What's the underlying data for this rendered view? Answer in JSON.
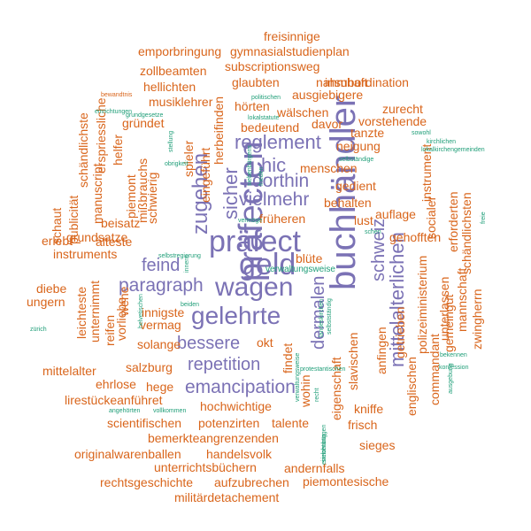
{
  "colors": {
    "large": "#7b72b5",
    "medium": "#d9651b",
    "small": "#1f9e78"
  },
  "words": [
    {
      "text": "buchhändler",
      "group": "large"
    },
    {
      "text": "präfecten",
      "group": "large"
    },
    {
      "text": "präfect",
      "group": "large"
    },
    {
      "text": "geld",
      "group": "large"
    },
    {
      "text": "wagen",
      "group": "large"
    },
    {
      "text": "gelehrte",
      "group": "large"
    },
    {
      "text": "paragraph",
      "group": "large"
    },
    {
      "text": "reglement",
      "group": "large"
    },
    {
      "text": "vielmehr",
      "group": "large"
    },
    {
      "text": "dorthin",
      "group": "large"
    },
    {
      "text": "hic",
      "group": "large"
    },
    {
      "text": "feind",
      "group": "large"
    },
    {
      "text": "bessere",
      "group": "large"
    },
    {
      "text": "repetition",
      "group": "large"
    },
    {
      "text": "emancipation",
      "group": "large"
    },
    {
      "text": "zugehen",
      "group": "large"
    },
    {
      "text": "sicher",
      "group": "large"
    },
    {
      "text": "dermalen",
      "group": "large"
    },
    {
      "text": "schweiz",
      "group": "large"
    },
    {
      "text": "mittelalterlichen",
      "group": "large"
    },
    {
      "text": "freisinnige",
      "group": "medium"
    },
    {
      "text": "gymnasialstudienplan",
      "group": "medium"
    },
    {
      "text": "emporbringung",
      "group": "medium"
    },
    {
      "text": "subscriptionsweg",
      "group": "medium"
    },
    {
      "text": "zollbeamten",
      "group": "medium"
    },
    {
      "text": "glaubten",
      "group": "medium"
    },
    {
      "text": "nahmhaft",
      "group": "medium"
    },
    {
      "text": "insubordination",
      "group": "medium"
    },
    {
      "text": "hellichten",
      "group": "medium"
    },
    {
      "text": "ausgiebigere",
      "group": "medium"
    },
    {
      "text": "musiklehrer",
      "group": "medium"
    },
    {
      "text": "hörten",
      "group": "medium"
    },
    {
      "text": "zurecht",
      "group": "medium"
    },
    {
      "text": "wälschen",
      "group": "medium"
    },
    {
      "text": "gründet",
      "group": "medium"
    },
    {
      "text": "vorstehende",
      "group": "medium"
    },
    {
      "text": "davor",
      "group": "medium"
    },
    {
      "text": "bedeutend",
      "group": "medium"
    },
    {
      "text": "tanzte",
      "group": "medium"
    },
    {
      "text": "neigung",
      "group": "medium"
    },
    {
      "text": "menschen",
      "group": "medium"
    },
    {
      "text": "gedient",
      "group": "medium"
    },
    {
      "text": "behalten",
      "group": "medium"
    },
    {
      "text": "früheren",
      "group": "medium"
    },
    {
      "text": "lust",
      "group": "medium"
    },
    {
      "text": "auflage",
      "group": "medium"
    },
    {
      "text": "gehofften",
      "group": "medium"
    },
    {
      "text": "blüte",
      "group": "medium"
    },
    {
      "text": "beisatz",
      "group": "medium"
    },
    {
      "text": "grundsatze",
      "group": "medium"
    },
    {
      "text": "instruments",
      "group": "medium"
    },
    {
      "text": "älteste",
      "group": "medium"
    },
    {
      "text": "erlebt",
      "group": "medium"
    },
    {
      "text": "diebe",
      "group": "medium"
    },
    {
      "text": "ungern",
      "group": "medium"
    },
    {
      "text": "innigste",
      "group": "medium"
    },
    {
      "text": "vermag",
      "group": "medium"
    },
    {
      "text": "solange",
      "group": "medium"
    },
    {
      "text": "okt",
      "group": "medium"
    },
    {
      "text": "salzburg",
      "group": "medium"
    },
    {
      "text": "mittelalter",
      "group": "medium"
    },
    {
      "text": "ehrlose",
      "group": "medium"
    },
    {
      "text": "hege",
      "group": "medium"
    },
    {
      "text": "lirestückeanführet",
      "group": "medium"
    },
    {
      "text": "hochwichtige",
      "group": "medium"
    },
    {
      "text": "scientifischen",
      "group": "medium"
    },
    {
      "text": "potenzirten",
      "group": "medium"
    },
    {
      "text": "talente",
      "group": "medium"
    },
    {
      "text": "kniffe",
      "group": "medium"
    },
    {
      "text": "bemerkteangrenzenden",
      "group": "medium"
    },
    {
      "text": "frisch",
      "group": "medium"
    },
    {
      "text": "originalwarenballen",
      "group": "medium"
    },
    {
      "text": "handelsvolk",
      "group": "medium"
    },
    {
      "text": "sieges",
      "group": "medium"
    },
    {
      "text": "unterrichtsbüchern",
      "group": "medium"
    },
    {
      "text": "andernfalls",
      "group": "medium"
    },
    {
      "text": "rechtsgeschichte",
      "group": "medium"
    },
    {
      "text": "aufzubrechen",
      "group": "medium"
    },
    {
      "text": "piemontesische",
      "group": "medium"
    },
    {
      "text": "militärdetachement",
      "group": "medium"
    },
    {
      "text": "leichteste",
      "group": "medium"
    },
    {
      "text": "unternimmt",
      "group": "medium"
    },
    {
      "text": "reifen",
      "group": "medium"
    },
    {
      "text": "vorliebe",
      "group": "medium"
    },
    {
      "text": "wehe",
      "group": "medium"
    },
    {
      "text": "schaut",
      "group": "medium"
    },
    {
      "text": "publicität",
      "group": "medium"
    },
    {
      "text": "manuscript",
      "group": "medium"
    },
    {
      "text": "erspriessliche",
      "group": "medium"
    },
    {
      "text": "schändlichste",
      "group": "medium"
    },
    {
      "text": "helfer",
      "group": "medium"
    },
    {
      "text": "piemont",
      "group": "medium"
    },
    {
      "text": "mißbrauchs",
      "group": "medium"
    },
    {
      "text": "schwierig",
      "group": "medium"
    },
    {
      "text": "spieler",
      "group": "medium"
    },
    {
      "text": "herbeifinden",
      "group": "medium"
    },
    {
      "text": "eingeführt",
      "group": "medium"
    },
    {
      "text": "findet",
      "group": "medium"
    },
    {
      "text": "wohin",
      "group": "medium"
    },
    {
      "text": "eigenschaft",
      "group": "medium"
    },
    {
      "text": "slavischen",
      "group": "medium"
    },
    {
      "text": "anfingen",
      "group": "medium"
    },
    {
      "text": "getrieben",
      "group": "medium"
    },
    {
      "text": "englischen",
      "group": "medium"
    },
    {
      "text": "polizeiministerium",
      "group": "medium"
    },
    {
      "text": "commandant",
      "group": "medium"
    },
    {
      "text": "unterlassen",
      "group": "medium"
    },
    {
      "text": "gemeingut",
      "group": "medium"
    },
    {
      "text": "mannschaft",
      "group": "medium"
    },
    {
      "text": "zwingherrn",
      "group": "medium"
    },
    {
      "text": "schändlichsten",
      "group": "medium"
    },
    {
      "text": "erforderten",
      "group": "medium"
    },
    {
      "text": "socialer",
      "group": "medium"
    },
    {
      "text": "instrument",
      "group": "medium"
    },
    {
      "text": "bewandtnis",
      "group": "medium"
    },
    {
      "text": "einrichtungen",
      "group": "small"
    },
    {
      "text": "grundgesetze",
      "group": "small"
    },
    {
      "text": "politischen",
      "group": "small"
    },
    {
      "text": "lokalstatute",
      "group": "small"
    },
    {
      "text": "stellung",
      "group": "small"
    },
    {
      "text": "obrigkeit",
      "group": "small"
    },
    {
      "text": "sowohl",
      "group": "small"
    },
    {
      "text": "kirchlichen",
      "group": "small"
    },
    {
      "text": "lokalkirchengemeinden",
      "group": "small"
    },
    {
      "text": "selbständige",
      "group": "small"
    },
    {
      "text": "siebenbürgens",
      "group": "small"
    },
    {
      "text": "frieden",
      "group": "small"
    },
    {
      "text": "vermöge",
      "group": "small"
    },
    {
      "text": "schen",
      "group": "small"
    },
    {
      "text": "freie",
      "group": "small"
    },
    {
      "text": "selbstregierung",
      "group": "small"
    },
    {
      "text": "innern",
      "group": "small"
    },
    {
      "text": "beiden",
      "group": "small"
    },
    {
      "text": "helvetischen",
      "group": "small"
    },
    {
      "text": "zürich",
      "group": "small"
    },
    {
      "text": "selbstständig",
      "group": "small"
    },
    {
      "text": "landeskirchen",
      "group": "small"
    },
    {
      "text": "bekennen",
      "group": "small"
    },
    {
      "text": "konfession",
      "group": "small"
    },
    {
      "text": "protestantischen",
      "group": "small"
    },
    {
      "text": "recht",
      "group": "small"
    },
    {
      "text": "verwaltungsweise",
      "group": "small"
    },
    {
      "text": "ausgebung",
      "group": "small"
    },
    {
      "text": "angehörten",
      "group": "small"
    },
    {
      "text": "vollkommen",
      "group": "small"
    },
    {
      "text": "siebenbürgen",
      "group": "small"
    },
    {
      "text": "einrichtung",
      "group": "small"
    },
    {
      "text": "verwaltungsweise",
      "group": "small"
    }
  ]
}
